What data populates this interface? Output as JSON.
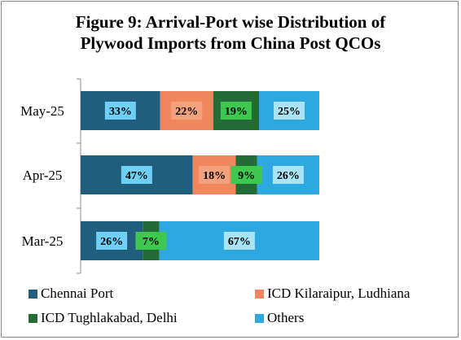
{
  "title_line1": "Figure 9: Arrival-Port wise Distribution of",
  "title_line2": "Plywood Imports from China Post QCOs",
  "chart_data": {
    "type": "bar",
    "orientation": "horizontal",
    "stacked": "percent",
    "categories": [
      "May-25",
      "Apr-25",
      "Mar-25"
    ],
    "series": [
      {
        "name": "Chennai Port",
        "values": [
          33,
          47,
          26
        ],
        "labels": [
          "33%",
          "47%",
          "26%"
        ],
        "color": "#215e7d"
      },
      {
        "name": "ICD Kilaraipur, Ludhiana",
        "values": [
          22,
          18,
          0
        ],
        "labels": [
          "22%",
          "18%",
          ""
        ],
        "color": "#f0875d"
      },
      {
        "name": "ICD Tughlakabad, Delhi",
        "values": [
          19,
          9,
          7
        ],
        "labels": [
          "19%",
          "9%",
          "7%"
        ],
        "color": "#246b37"
      },
      {
        "name": "Others",
        "values": [
          25,
          26,
          67
        ],
        "labels": [
          "25%",
          "26%",
          "67%"
        ],
        "color": "#2ea8e0"
      }
    ],
    "label_box_colors": [
      "#6ed0f5",
      "#f4a17d",
      "#3ec84f",
      "#a8e4f8"
    ],
    "xlim": [
      0,
      100
    ],
    "legend_position": "bottom",
    "grid": false
  }
}
